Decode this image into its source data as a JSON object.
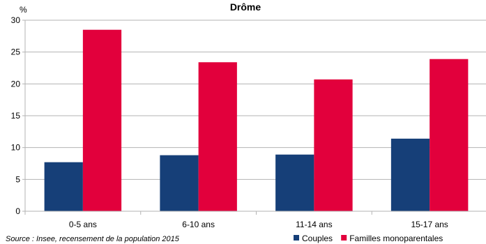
{
  "chart_data": {
    "type": "bar",
    "title": "Drôme",
    "ylabel": "%",
    "xlabel": "",
    "categories": [
      "0-5 ans",
      "6-10 ans",
      "11-14 ans",
      "15-17 ans"
    ],
    "series": [
      {
        "name": "Couples",
        "color": "#163f78",
        "values": [
          7.7,
          8.8,
          8.9,
          11.4
        ]
      },
      {
        "name": "Familles monoparentales",
        "color": "#e2003c",
        "values": [
          28.5,
          23.4,
          20.7,
          23.9
        ]
      }
    ],
    "ylim": [
      0,
      30
    ],
    "yticks": [
      0,
      5,
      10,
      15,
      20,
      25,
      30
    ],
    "grid": true,
    "legend_position": "bottom-right",
    "source": "Source : Insee, recensement de la population 2015"
  }
}
